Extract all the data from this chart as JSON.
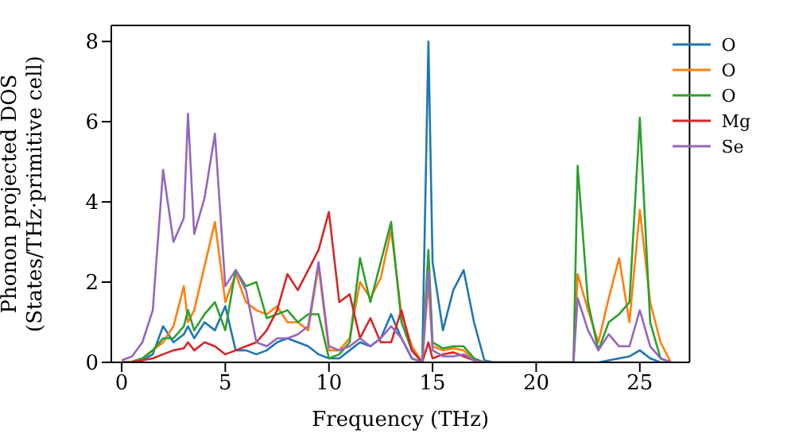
{
  "chart_data": {
    "type": "line",
    "xlabel": "Frequency (THz)",
    "ylabel": "Phonon projected DOS\n(States/THz·primitive cell)",
    "x": [
      0,
      0.5,
      1,
      1.5,
      2,
      2.5,
      3,
      3.2,
      3.5,
      4,
      4.5,
      5,
      5.5,
      6,
      6.5,
      7,
      7.5,
      8,
      8.5,
      9,
      9.5,
      10,
      10.5,
      11,
      11.5,
      12,
      12.5,
      13,
      13.5,
      14,
      14.5,
      14.8,
      15,
      15.5,
      16,
      16.5,
      17,
      17.5,
      18,
      19,
      20,
      21,
      21.8,
      22,
      22.5,
      23,
      23.5,
      24,
      24.5,
      25,
      25.5,
      26,
      26.5
    ],
    "series": [
      {
        "name": "O",
        "color": "#1f77b4",
        "values": [
          0,
          0,
          0.05,
          0.2,
          0.9,
          0.5,
          0.7,
          0.9,
          0.6,
          1.0,
          0.8,
          1.4,
          0.3,
          0.3,
          0.2,
          0.3,
          0.5,
          0.6,
          0.5,
          0.4,
          0.2,
          0.1,
          0.1,
          0.3,
          0.5,
          0.4,
          0.6,
          1.2,
          0.6,
          0.1,
          0,
          8.0,
          2.5,
          0.8,
          1.8,
          2.3,
          1.0,
          0.05,
          0,
          0,
          0,
          0,
          0,
          0,
          0,
          0,
          0.05,
          0.1,
          0.15,
          0.3,
          0.1,
          0,
          0
        ]
      },
      {
        "name": "O",
        "color": "#ff7f0e",
        "values": [
          null,
          null,
          0.1,
          0.3,
          0.5,
          0.9,
          1.9,
          1.0,
          1.3,
          2.4,
          3.5,
          1.5,
          2.2,
          1.5,
          1.3,
          1.2,
          1.4,
          1.0,
          1.0,
          0.8,
          2.4,
          0.3,
          0.3,
          0.6,
          2.0,
          1.6,
          2.1,
          3.3,
          1.2,
          0.4,
          0,
          2.0,
          0.4,
          0.3,
          0.35,
          0.3,
          0.05,
          0,
          0,
          0,
          0,
          0,
          0,
          2.2,
          1.3,
          0.5,
          1.6,
          2.6,
          1.0,
          3.8,
          1.5,
          0.5,
          0
        ]
      },
      {
        "name": "O",
        "color": "#2ca02c",
        "values": [
          0,
          0.02,
          0.1,
          0.3,
          0.6,
          0.6,
          0.9,
          1.3,
          0.8,
          1.2,
          1.5,
          0.8,
          2.3,
          1.9,
          2.0,
          1.1,
          1.2,
          1.3,
          1.0,
          1.2,
          1.2,
          0.1,
          0.2,
          0.5,
          2.6,
          1.5,
          2.5,
          3.5,
          1.0,
          0.3,
          0,
          2.8,
          0.5,
          0.35,
          0.4,
          0.4,
          0.1,
          0,
          0,
          0,
          0,
          0,
          0,
          4.9,
          1.5,
          0.3,
          1.0,
          1.2,
          1.5,
          6.1,
          1.0,
          0.1,
          0
        ]
      },
      {
        "name": "Mg",
        "color": "#d62728",
        "values": [
          0,
          0.01,
          0.05,
          0.1,
          0.2,
          0.3,
          0.35,
          0.5,
          0.3,
          0.5,
          0.4,
          0.2,
          0.3,
          0.4,
          0.5,
          0.8,
          1.3,
          2.2,
          1.8,
          2.3,
          2.8,
          3.75,
          1.5,
          1.7,
          0.6,
          1.1,
          0.5,
          0.5,
          1.3,
          0.3,
          0,
          0.5,
          0.1,
          0.2,
          0.25,
          0.15,
          0.05,
          0,
          null,
          null,
          null,
          null,
          null,
          null,
          null,
          null,
          null,
          null,
          null,
          null,
          null,
          null,
          null
        ]
      },
      {
        "name": "Se",
        "color": "#9467bd",
        "values": [
          0.05,
          0.15,
          0.5,
          1.3,
          4.8,
          3.0,
          3.6,
          6.2,
          3.2,
          4.1,
          5.7,
          1.9,
          2.3,
          1.8,
          0.5,
          0.4,
          0.6,
          0.6,
          0.7,
          0.9,
          2.5,
          0.4,
          0.3,
          0.4,
          0.6,
          0.4,
          0.6,
          0.9,
          0.6,
          0.1,
          0,
          2.3,
          0.3,
          0.15,
          0.15,
          0.2,
          0.05,
          0,
          0,
          0,
          0,
          0,
          0,
          1.6,
          0.8,
          0.3,
          0.7,
          0.4,
          0.4,
          1.3,
          0.4,
          0.1,
          0
        ]
      }
    ],
    "xlim": [
      -0.5,
      27.4
    ],
    "xticks": [
      0,
      5,
      10,
      15,
      20,
      25
    ],
    "ylim": [
      0,
      8.4
    ],
    "yticks": [
      0,
      2,
      4,
      6,
      8
    ],
    "grid": false,
    "legend": "top right",
    "marker": "none",
    "line_style": "solid"
  }
}
